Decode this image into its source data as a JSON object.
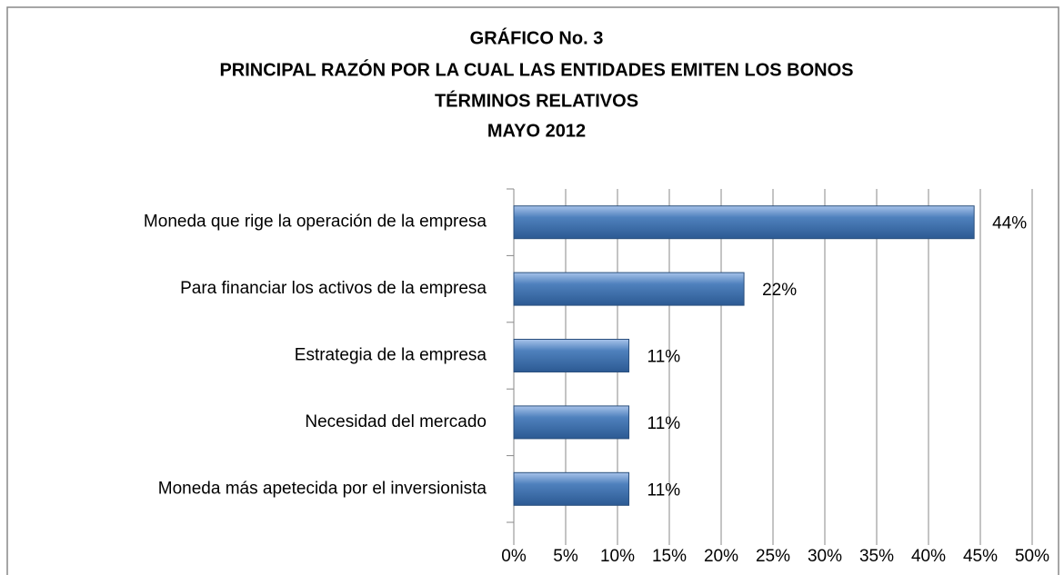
{
  "chart_data": {
    "type": "hbar",
    "title": "GRÁFICO No. 3",
    "subtitle": [
      "PRINCIPAL RAZÓN POR LA CUAL LAS ENTIDADES EMITEN LOS BONOS",
      "TÉRMINOS RELATIVOS",
      "MAYO 2012"
    ],
    "categories": [
      "Moneda que rige la operación de la empresa",
      "Para financiar los activos de la empresa",
      "Estrategia de la empresa",
      "Necesidad del mercado",
      "Moneda más apetecida por el inversionista"
    ],
    "values": [
      44.4,
      22.2,
      11.1,
      11.1,
      11.1
    ],
    "value_labels": [
      "44%",
      "22%",
      "11%",
      "11%",
      "11%"
    ],
    "color": "#4f81bd",
    "xlim": [
      0,
      50
    ],
    "xticks": [
      {
        "value": 0,
        "label": "0%"
      },
      {
        "value": 5,
        "label": "5%"
      },
      {
        "value": 10,
        "label": "10%"
      },
      {
        "value": 15,
        "label": "15%"
      },
      {
        "value": 20,
        "label": "20%"
      },
      {
        "value": 25,
        "label": "25%"
      },
      {
        "value": 30,
        "label": "30%"
      },
      {
        "value": 35,
        "label": "35%"
      },
      {
        "value": 40,
        "label": "40%"
      },
      {
        "value": 45,
        "label": "45%"
      },
      {
        "value": 50,
        "label": "50%"
      }
    ],
    "grid": true
  }
}
